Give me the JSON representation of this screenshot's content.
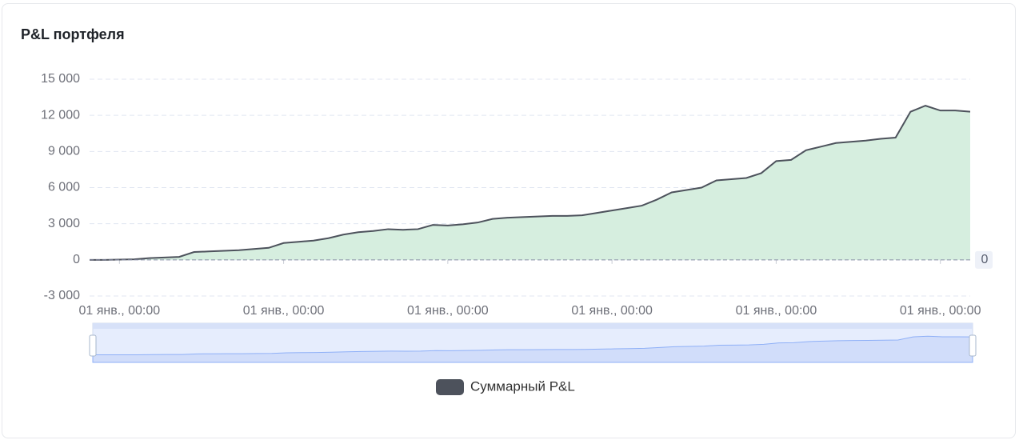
{
  "chart_data": {
    "type": "area",
    "title": "P&L портфеля",
    "categories": [
      null,
      null,
      "01 янв., 00:00",
      null,
      null,
      null,
      null,
      null,
      null,
      null,
      null,
      null,
      null,
      "01 янв., 00:00",
      null,
      null,
      null,
      null,
      null,
      null,
      null,
      null,
      null,
      null,
      "01 янв., 00:00",
      null,
      null,
      null,
      null,
      null,
      null,
      null,
      null,
      null,
      null,
      "01 янв., 00:00",
      null,
      null,
      null,
      null,
      null,
      null,
      null,
      null,
      null,
      null,
      "01 янв., 00:00",
      null,
      null,
      null,
      null,
      null,
      null,
      null,
      null,
      null,
      null,
      "01 янв., 00:00",
      null,
      null
    ],
    "series": [
      {
        "name": "Суммарный P&L",
        "color": "#4d525c",
        "fill": "#d6eedf",
        "values": [
          0,
          0,
          20,
          50,
          150,
          200,
          250,
          650,
          700,
          750,
          800,
          900,
          1000,
          1400,
          1500,
          1600,
          1800,
          2100,
          2300,
          2400,
          2550,
          2500,
          2550,
          2900,
          2850,
          2950,
          3100,
          3400,
          3500,
          3550,
          3600,
          3650,
          3650,
          3700,
          3900,
          4100,
          4300,
          4500,
          5000,
          5600,
          5800,
          6000,
          6600,
          6700,
          6800,
          7200,
          8200,
          8300,
          9100,
          9400,
          9700,
          9800,
          9900,
          10050,
          10150,
          12300,
          12800,
          12400,
          12400,
          12300
        ]
      }
    ],
    "ylim": [
      -3000,
      15000
    ],
    "yticks": [
      {
        "value": -3000,
        "label": "-3 000"
      },
      0,
      {
        "value": 3000,
        "label": "3 000"
      },
      {
        "value": 6000,
        "label": "6 000"
      },
      {
        "value": 9000,
        "label": "9 000"
      },
      {
        "value": 12000,
        "label": "12 000"
      },
      {
        "value": 15000,
        "label": "15 000"
      }
    ],
    "mark_line": 0,
    "grid": true
  }
}
